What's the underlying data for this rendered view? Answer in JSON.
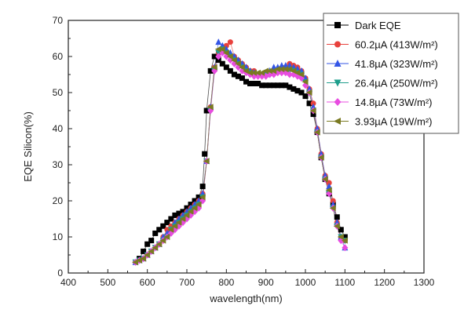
{
  "chart_data": {
    "type": "scatter",
    "title": "",
    "xlabel": "wavelength(nm)",
    "ylabel": "EQE Silicon(%)",
    "xlim": [
      400,
      1300
    ],
    "ylim": [
      0,
      70
    ],
    "xticks": [
      400,
      500,
      600,
      700,
      800,
      900,
      1000,
      1100,
      1200,
      1300
    ],
    "yticks": [
      0,
      10,
      20,
      30,
      40,
      50,
      60,
      70
    ],
    "grid": false,
    "legend_position": "top-right",
    "series": [
      {
        "name": "Dark EQE",
        "color": "#000000",
        "marker": "square",
        "x": [
          580,
          590,
          600,
          610,
          620,
          630,
          640,
          650,
          660,
          670,
          680,
          690,
          700,
          710,
          720,
          730,
          740,
          745,
          750,
          760,
          770,
          780,
          790,
          800,
          810,
          820,
          830,
          840,
          850,
          860,
          870,
          880,
          890,
          900,
          910,
          920,
          930,
          940,
          950,
          960,
          970,
          980,
          990,
          1000,
          1010,
          1020,
          1030,
          1040,
          1050,
          1060,
          1070,
          1080,
          1090,
          1100
        ],
        "y": [
          4,
          6,
          8,
          9,
          11,
          12,
          13,
          14,
          15,
          16,
          16.5,
          17,
          18,
          19,
          20,
          21,
          24,
          33,
          45,
          56,
          60,
          59,
          58,
          57,
          56,
          55,
          54.5,
          54,
          53,
          52.5,
          52.5,
          52.5,
          52,
          52,
          52,
          52,
          52,
          52,
          52,
          51.5,
          51,
          50.5,
          50,
          49,
          47,
          44,
          39,
          32,
          26,
          22,
          19,
          15.5,
          12,
          10
        ]
      },
      {
        "name": "60.2µA (413W/m²)",
        "color": "#e8413c",
        "marker": "circle",
        "x": [
          570,
          580,
          590,
          600,
          610,
          620,
          630,
          640,
          650,
          660,
          670,
          680,
          690,
          700,
          710,
          720,
          730,
          740,
          750,
          760,
          770,
          780,
          790,
          800,
          810,
          820,
          830,
          840,
          850,
          860,
          870,
          880,
          890,
          900,
          910,
          920,
          930,
          940,
          950,
          960,
          970,
          980,
          990,
          1000,
          1010,
          1020,
          1030,
          1040,
          1050,
          1060,
          1070,
          1080,
          1090,
          1100
        ],
        "y": [
          3,
          3.5,
          4,
          5,
          6,
          7,
          8,
          10,
          12,
          13,
          14,
          15,
          16,
          17,
          18,
          19,
          20,
          22,
          31,
          46,
          57,
          61,
          62,
          63,
          64,
          60,
          59,
          58,
          57,
          56,
          56,
          55,
          55,
          55,
          55.5,
          55.5,
          56,
          56.5,
          57,
          58,
          57.5,
          57,
          56,
          54,
          51,
          47,
          40,
          33,
          27,
          25,
          20,
          14,
          10,
          9
        ]
      },
      {
        "name": "41.8µA (323W/m²)",
        "color": "#3355e6",
        "marker": "triangle-up",
        "x": [
          570,
          580,
          590,
          600,
          610,
          620,
          630,
          640,
          650,
          660,
          670,
          680,
          690,
          700,
          710,
          720,
          730,
          740,
          750,
          760,
          770,
          780,
          790,
          800,
          810,
          820,
          830,
          840,
          850,
          860,
          870,
          880,
          890,
          900,
          910,
          920,
          930,
          940,
          950,
          960,
          970,
          980,
          990,
          1000,
          1010,
          1020,
          1030,
          1040,
          1050,
          1060,
          1070,
          1080,
          1090,
          1100
        ],
        "y": [
          3,
          3.5,
          4,
          5,
          6,
          7,
          8,
          10,
          11,
          12,
          14,
          15,
          16,
          17,
          18,
          19,
          20,
          22,
          31,
          46,
          57,
          64,
          63,
          62,
          61,
          60,
          59,
          58,
          57,
          56,
          55.5,
          55,
          55,
          55,
          56,
          57,
          57,
          57.5,
          57.5,
          57.5,
          57,
          56.5,
          56,
          54,
          51,
          46,
          40,
          33,
          27,
          24,
          19,
          14,
          10,
          7
        ]
      },
      {
        "name": "26.4µA (250W/m²)",
        "color": "#1e9e8c",
        "marker": "triangle-down",
        "x": [
          570,
          580,
          590,
          600,
          610,
          620,
          630,
          640,
          650,
          660,
          670,
          680,
          690,
          700,
          710,
          720,
          730,
          740,
          750,
          760,
          770,
          780,
          790,
          800,
          810,
          820,
          830,
          840,
          850,
          860,
          870,
          880,
          890,
          900,
          910,
          920,
          930,
          940,
          950,
          960,
          970,
          980,
          990,
          1000,
          1010,
          1020,
          1030,
          1040,
          1050,
          1060,
          1070,
          1080,
          1090,
          1100
        ],
        "y": [
          3,
          3.5,
          4,
          5,
          6,
          7,
          8,
          9,
          10,
          12,
          13,
          14,
          15,
          16,
          17,
          18,
          19,
          21,
          31,
          45,
          56,
          61,
          62,
          61,
          60,
          59,
          58,
          57,
          56,
          55.5,
          55,
          55,
          55,
          55,
          55.5,
          55.5,
          56,
          56,
          56,
          56,
          56,
          55.5,
          55,
          53,
          50,
          45,
          39,
          32,
          26,
          22,
          18,
          13,
          10,
          9
        ]
      },
      {
        "name": "14.8µA (73W/m²)",
        "color": "#e84ce0",
        "marker": "diamond",
        "x": [
          570,
          580,
          590,
          600,
          610,
          620,
          630,
          640,
          650,
          660,
          670,
          680,
          690,
          700,
          710,
          720,
          730,
          740,
          750,
          760,
          770,
          780,
          790,
          800,
          810,
          820,
          830,
          840,
          850,
          860,
          870,
          880,
          890,
          900,
          910,
          920,
          930,
          940,
          950,
          960,
          970,
          980,
          990,
          1000,
          1010,
          1020,
          1030,
          1040,
          1050,
          1060,
          1070,
          1080,
          1090,
          1100
        ],
        "y": [
          3,
          3.5,
          4,
          5,
          6,
          7,
          8,
          9,
          10,
          11,
          12,
          13,
          14,
          15,
          16,
          17,
          18,
          20,
          31,
          45,
          56,
          60,
          61,
          60,
          59,
          58,
          57,
          56,
          55.5,
          55,
          54.5,
          54.5,
          54.5,
          54.5,
          55,
          55,
          55.5,
          55.5,
          55.5,
          55,
          55,
          54.5,
          54,
          52,
          50,
          45,
          39,
          32,
          26,
          22,
          18,
          13,
          9,
          7
        ]
      },
      {
        "name": "3.93µA (19W/m²)",
        "color": "#7a7a22",
        "marker": "triangle-left",
        "x": [
          570,
          580,
          590,
          600,
          610,
          620,
          630,
          640,
          650,
          660,
          670,
          680,
          690,
          700,
          710,
          720,
          730,
          740,
          750,
          760,
          770,
          780,
          790,
          800,
          810,
          820,
          830,
          840,
          850,
          860,
          870,
          880,
          890,
          900,
          910,
          920,
          930,
          940,
          950,
          960,
          970,
          980,
          990,
          1000,
          1010,
          1020,
          1030,
          1040,
          1050,
          1060,
          1070,
          1080,
          1090,
          1100
        ],
        "y": [
          3,
          3.5,
          4,
          5,
          6,
          7,
          8,
          9,
          10,
          12,
          13,
          14,
          15,
          16,
          17,
          18,
          19,
          21,
          31,
          46,
          57,
          62,
          62,
          61,
          60,
          59,
          58,
          57,
          56,
          55.5,
          55.5,
          55.5,
          55.5,
          56,
          56,
          56,
          56.5,
          56.5,
          56.5,
          56.5,
          56,
          55.5,
          55,
          53,
          50,
          45,
          39,
          32,
          26,
          23,
          18,
          13,
          10,
          9
        ]
      }
    ]
  }
}
